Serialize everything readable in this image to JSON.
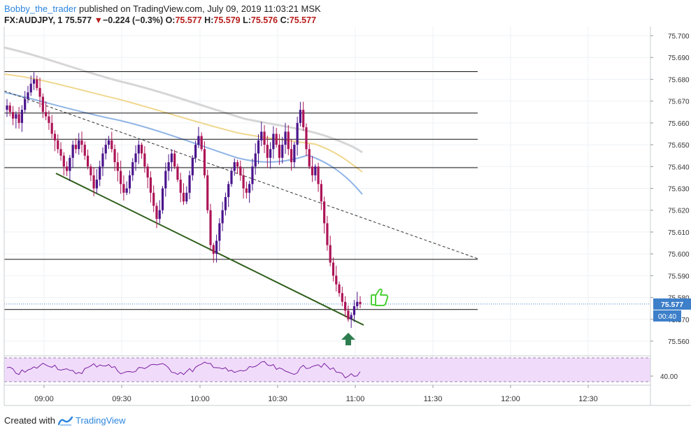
{
  "header": {
    "author": "Bobby_the_trader",
    "published": "published on TradingView.com, July 09, 2019 11:03:21 MSK",
    "symbol": "FX:AUDJPY, 1",
    "last": "75.577",
    "change": "−0.224 (−0.3%)",
    "ohlc": [
      {
        "k": "O:",
        "v": "75.577"
      },
      {
        "k": "H:",
        "v": "75.579"
      },
      {
        "k": "L:",
        "v": "75.576"
      },
      {
        "k": "C:",
        "v": "75.577"
      }
    ]
  },
  "price_axis": {
    "ticks": [
      "75.700",
      "75.690",
      "75.680",
      "75.670",
      "75.660",
      "75.650",
      "75.640",
      "75.630",
      "75.620",
      "75.610",
      "75.600",
      "75.590",
      "75.580",
      "75.570",
      "75.560"
    ],
    "last_label": "75.577",
    "countdown": "00:40"
  },
  "rsi_axis": {
    "ticks": [
      "40.00"
    ]
  },
  "time_axis": {
    "ticks": [
      "09:00",
      "09:30",
      "10:00",
      "10:30",
      "11:00",
      "11:30",
      "12:00",
      "12:30"
    ]
  },
  "footer": {
    "created_with": "Created with",
    "brand": "TradingView"
  },
  "colors": {
    "bullish": "#4a148c",
    "bearish": "#ad1457",
    "ma_fast": "#90b4e6",
    "ma_mid": "#f0d890",
    "ma_slow": "#d6d6d6",
    "trendline": "#2e5d1a",
    "thumb": "#4cd137",
    "arrow": "#2e7d4f",
    "rsi_line": "#7b1fa2",
    "rsi_band": "#f0dcfa",
    "last_price": "#3d7fc9"
  },
  "chart_data": {
    "type": "candlestick",
    "timeframe": "1 minute",
    "ylim": [
      75.553,
      75.705
    ],
    "y_ticks": [
      75.56,
      75.57,
      75.58,
      75.59,
      75.6,
      75.61,
      75.62,
      75.63,
      75.64,
      75.65,
      75.66,
      75.67,
      75.68,
      75.69,
      75.7
    ],
    "horizontal_levels": [
      75.6835,
      75.6645,
      75.6525,
      75.6395,
      75.5975,
      75.5745
    ],
    "last_price": 75.577,
    "annotations": [
      "thumbs-up",
      "up-arrow"
    ]
  }
}
